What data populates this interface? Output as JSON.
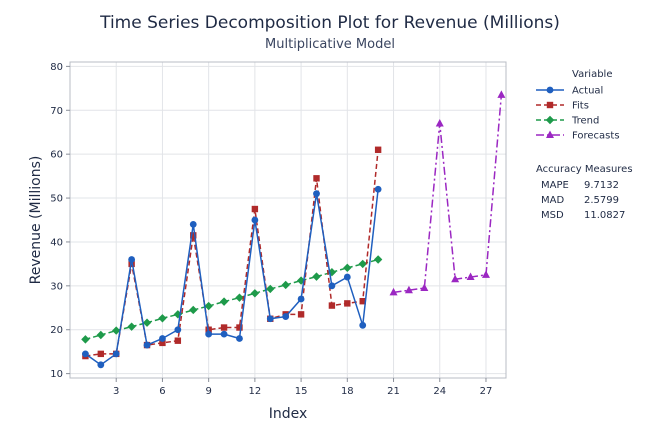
{
  "chart_data": {
    "type": "line",
    "title": "Time Series Decomposition Plot for Revenue (Millions)",
    "subtitle": "Multiplicative Model",
    "xlabel": "Index",
    "ylabel": "Revenue (Millions)",
    "xlim": [
      0,
      28.3
    ],
    "ylim": [
      9,
      81
    ],
    "xticks": [
      3,
      6,
      9,
      12,
      15,
      18,
      21,
      24,
      27
    ],
    "yticks": [
      10,
      20,
      30,
      40,
      50,
      60,
      70,
      80
    ],
    "ytick_labels": [
      "10",
      "20",
      "30",
      "40",
      "50",
      "60",
      "70",
      "80"
    ],
    "grid": true,
    "legend_title": "Variable",
    "legend_position": "right",
    "series": [
      {
        "name": "Actual",
        "style": "solid-circle",
        "color": "#1f5fbf",
        "x": [
          1,
          2,
          3,
          4,
          5,
          6,
          7,
          8,
          9,
          10,
          11,
          12,
          13,
          14,
          15,
          16,
          17,
          18,
          19,
          20
        ],
        "values": [
          14.5,
          12,
          14.5,
          36,
          16.5,
          18,
          20,
          44,
          19,
          19,
          18,
          45,
          22.5,
          23,
          27,
          51,
          30,
          32,
          21,
          52
        ]
      },
      {
        "name": "Fits",
        "style": "dashed-square",
        "color": "#b02a2a",
        "x": [
          1,
          2,
          3,
          4,
          5,
          6,
          7,
          8,
          9,
          10,
          11,
          12,
          13,
          14,
          15,
          16,
          17,
          18,
          19,
          20
        ],
        "values": [
          14,
          14.5,
          14.5,
          35,
          16.5,
          17,
          17.5,
          41.5,
          20,
          20.5,
          20.5,
          47.5,
          22.5,
          23.5,
          23.5,
          54.5,
          25.5,
          26,
          26.5,
          61
        ]
      },
      {
        "name": "Trend",
        "style": "dashed-diamond",
        "color": "#1e9a4a",
        "x": [
          1,
          2,
          3,
          4,
          5,
          6,
          7,
          8,
          9,
          10,
          11,
          12,
          13,
          14,
          15,
          16,
          17,
          18,
          19,
          20
        ],
        "values": [
          17.8,
          18.8,
          19.8,
          20.7,
          21.6,
          22.6,
          23.5,
          24.5,
          25.4,
          26.4,
          27.3,
          28.3,
          29.3,
          30.2,
          31.2,
          32.1,
          33.1,
          34.1,
          35,
          36
        ]
      },
      {
        "name": "Forecasts",
        "style": "dashdot-triangle",
        "color": "#9b27c2",
        "x": [
          21,
          22,
          23,
          24,
          25,
          26,
          27,
          28
        ],
        "values": [
          28.5,
          29,
          29.5,
          67,
          31.5,
          32,
          32.5,
          73.5
        ]
      }
    ],
    "accuracy_measures": {
      "title": "Accuracy Measures",
      "rows": [
        {
          "label": "MAPE",
          "value": "9.7132"
        },
        {
          "label": "MAD",
          "value": "2.5799"
        },
        {
          "label": "MSD",
          "value": "11.0827"
        }
      ]
    }
  }
}
